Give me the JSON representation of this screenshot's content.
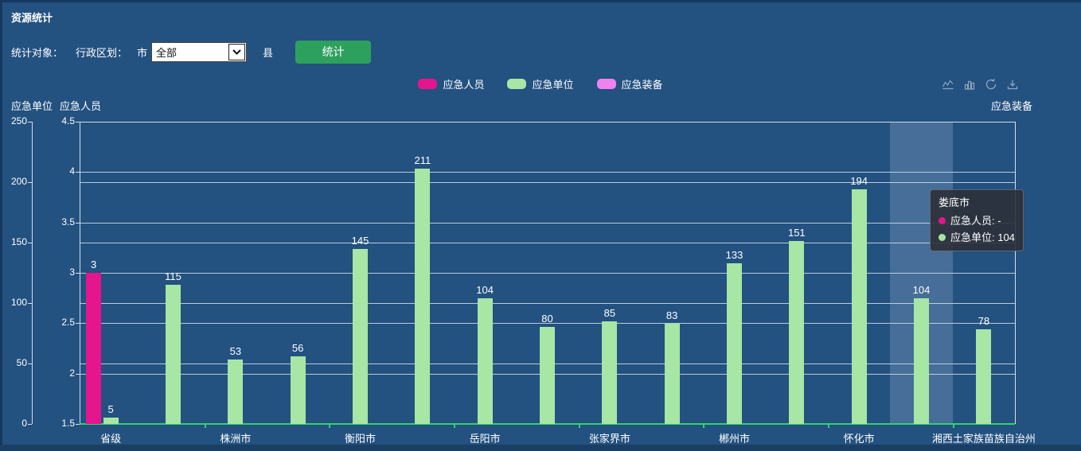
{
  "panel": {
    "title": "资源统计"
  },
  "controls": {
    "stat_object_label": "统计对象：",
    "admin_division_label": "行政区划：",
    "city_label": "市",
    "city_select_value": "全部",
    "county_label": "县",
    "stat_button": "统计"
  },
  "legend": [
    {
      "label": "应急人员",
      "color": "#e5158d"
    },
    {
      "label": "应急单位",
      "color": "#a7e6a4"
    },
    {
      "label": "应急装备",
      "color": "#ee82ee"
    }
  ],
  "toolbox": {
    "icons": [
      "line-chart-icon",
      "bar-chart-icon",
      "refresh-icon",
      "download-icon"
    ],
    "icon_color": "#93a5bb"
  },
  "chart_data": {
    "type": "bar",
    "title": "",
    "categories": [
      {
        "label": "省级",
        "axis_label": true
      },
      {
        "label": "",
        "axis_label": false
      },
      {
        "label": "株洲市",
        "axis_label": true
      },
      {
        "label": "",
        "axis_label": false
      },
      {
        "label": "衡阳市",
        "axis_label": true
      },
      {
        "label": "",
        "axis_label": false
      },
      {
        "label": "岳阳市",
        "axis_label": true
      },
      {
        "label": "",
        "axis_label": false
      },
      {
        "label": "张家界市",
        "axis_label": true
      },
      {
        "label": "",
        "axis_label": false
      },
      {
        "label": "郴州市",
        "axis_label": true
      },
      {
        "label": "",
        "axis_label": false
      },
      {
        "label": "怀化市",
        "axis_label": true
      },
      {
        "label": "娄底市",
        "axis_label": false
      },
      {
        "label": "湘西土家族苗族自治州",
        "axis_label": true
      }
    ],
    "series": [
      {
        "name": "应急人员",
        "color": "#e5158d",
        "y_axis": "person",
        "values": [
          3,
          null,
          null,
          null,
          null,
          null,
          null,
          null,
          null,
          null,
          null,
          null,
          null,
          null,
          null
        ]
      },
      {
        "name": "应急单位",
        "color": "#a7e6a4",
        "y_axis": "unit",
        "values": [
          5,
          115,
          53,
          56,
          145,
          211,
          104,
          80,
          85,
          83,
          133,
          151,
          194,
          104,
          78
        ]
      },
      {
        "name": "应急装备",
        "color": "#ee82ee",
        "y_axis": "equip",
        "values": [
          null,
          null,
          null,
          null,
          null,
          null,
          null,
          null,
          null,
          null,
          null,
          null,
          null,
          null,
          null
        ]
      }
    ],
    "axes": {
      "unit": {
        "name": "应急单位",
        "min": 0,
        "max": 250,
        "ticks": [
          0,
          50,
          100,
          150,
          200,
          250
        ]
      },
      "person": {
        "name": "应急人员",
        "min": 1.5,
        "max": 4.5,
        "ticks": [
          1.5,
          2,
          2.5,
          3,
          3.5,
          4,
          4.5
        ]
      },
      "equip": {
        "name": "应急装备",
        "ticks": []
      }
    },
    "grid": true,
    "legend_position": "top-center",
    "highlight": {
      "index": 13
    },
    "tooltip": {
      "title": "娄底市",
      "rows": [
        {
          "series": "应急人员",
          "color": "#e5158d",
          "value": "-"
        },
        {
          "series": "应急单位",
          "color": "#a7e6a4",
          "value": "104"
        }
      ]
    },
    "colors": {
      "background": "#235180",
      "x_axis_line": "#2dd36f",
      "grid_line": "#d6e0eb",
      "tick_label": "#ffffff"
    }
  }
}
